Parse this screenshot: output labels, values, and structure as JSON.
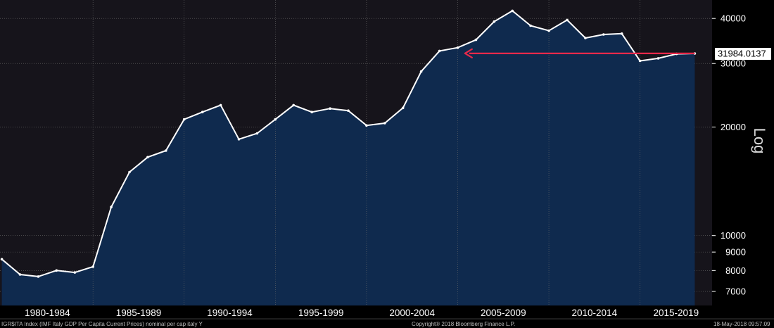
{
  "chart_data": {
    "type": "area",
    "title": "",
    "xlabel": "",
    "ylabel": "",
    "scale_label": "Log",
    "y_scale": "log",
    "ylim": [
      6400,
      45000
    ],
    "xlim": [
      1979.9,
      2018.95
    ],
    "y_ticks": [
      {
        "value": 7000,
        "label": "7000"
      },
      {
        "value": 8000,
        "label": "8000"
      },
      {
        "value": 9000,
        "label": "9000"
      },
      {
        "value": 10000,
        "label": "10000"
      },
      {
        "value": 20000,
        "label": "20000"
      },
      {
        "value": 30000,
        "label": "30000"
      },
      {
        "value": 40000,
        "label": "40000"
      }
    ],
    "x_tick_labels": [
      {
        "label": "1980-1984",
        "start": 1980,
        "end": 1985
      },
      {
        "label": "1985-1989",
        "start": 1985,
        "end": 1990
      },
      {
        "label": "1990-1994",
        "start": 1990,
        "end": 1995
      },
      {
        "label": "1995-1999",
        "start": 1995,
        "end": 2000
      },
      {
        "label": "2000-2004",
        "start": 2000,
        "end": 2005
      },
      {
        "label": "2005-2009",
        "start": 2005,
        "end": 2010
      },
      {
        "label": "2010-2014",
        "start": 2010,
        "end": 2015
      },
      {
        "label": "2015-2019",
        "start": 2015,
        "end": 2020
      }
    ],
    "grid": true,
    "series": [
      {
        "name": "",
        "color": "#ffffff",
        "fill": "#0f2a4e",
        "x": [
          1980,
          1981,
          1982,
          1983,
          1984,
          1985,
          1986,
          1987,
          1988,
          1989,
          1990,
          1991,
          1992,
          1993,
          1994,
          1995,
          1996,
          1997,
          1998,
          1999,
          2000,
          2001,
          2002,
          2003,
          2004,
          2005,
          2006,
          2007,
          2008,
          2009,
          2010,
          2011,
          2012,
          2013,
          2014,
          2015,
          2016,
          2017,
          2018
        ],
        "values": [
          8600,
          7800,
          7700,
          8000,
          7900,
          8200,
          12000,
          15000,
          16500,
          17200,
          21000,
          22000,
          23000,
          18500,
          19200,
          21000,
          23000,
          22000,
          22500,
          22200,
          20200,
          20500,
          22600,
          28500,
          32500,
          33200,
          34900,
          39200,
          42000,
          38200,
          37000,
          39600,
          35300,
          36100,
          36300,
          30500,
          31000,
          31900,
          31984.0137
        ]
      }
    ],
    "last_value_label": "31984.0137",
    "annotation": {
      "type": "arrow",
      "color": "#e8294a",
      "from_x": 2018,
      "to_x": 2005.4,
      "y": 32000
    },
    "colors": {
      "background": "#000000",
      "plot_background": "#16141b",
      "area_fill": "#0f2a4e",
      "line": "#ffffff",
      "grid": "#6a6a6a",
      "arrow": "#e8294a",
      "value_box": "#ffffff"
    }
  },
  "footer": {
    "left": "IGR$ITA Index (IMF Italy GDP Per Capita Current Prices) nominal per cap italy  Y",
    "center": "Copyright® 2018 Bloomberg Finance L.P.",
    "right": "18-May-2018 09:57:09"
  }
}
